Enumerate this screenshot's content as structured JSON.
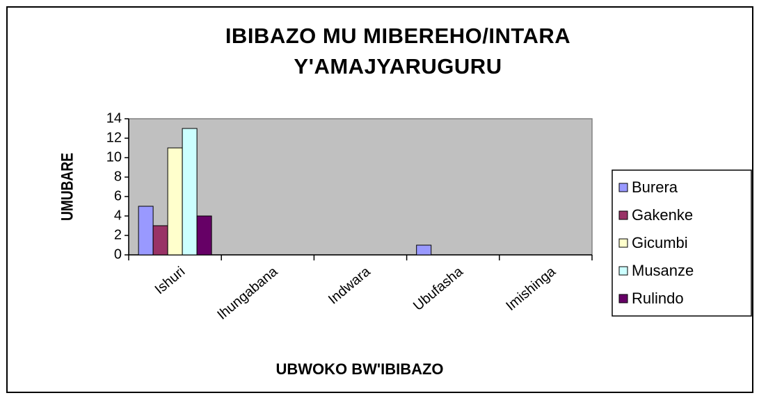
{
  "chart_data": {
    "type": "bar",
    "title": "IBIBAZO MU MIBEREHO/INTARA Y'AMAJYARUGURU",
    "x_label": "UBWOKO BW'IBIBAZO",
    "y_label": "UMUBARE",
    "categories": [
      "Ishuri",
      "Ihungabana",
      "Indwara",
      "Ubufasha",
      "Imishinga"
    ],
    "series": [
      {
        "name": "Burera",
        "color": "#9999ff",
        "values": [
          5,
          0,
          0,
          1,
          0
        ]
      },
      {
        "name": "Gakenke",
        "color": "#993366",
        "values": [
          3,
          0,
          0,
          0,
          0
        ]
      },
      {
        "name": "Gicumbi",
        "color": "#ffffcc",
        "values": [
          11,
          0,
          0,
          0,
          0
        ]
      },
      {
        "name": "Musanze",
        "color": "#ccffff",
        "values": [
          13,
          0,
          0,
          0,
          0
        ]
      },
      {
        "name": "Rulindo",
        "color": "#660066",
        "values": [
          4,
          0,
          0,
          0,
          0
        ]
      }
    ],
    "ylim": [
      0,
      14
    ],
    "yticks": [
      0,
      2,
      4,
      6,
      8,
      10,
      12,
      14
    ],
    "grid": false,
    "legend": "right",
    "plot_background": "#c0c0c0"
  }
}
